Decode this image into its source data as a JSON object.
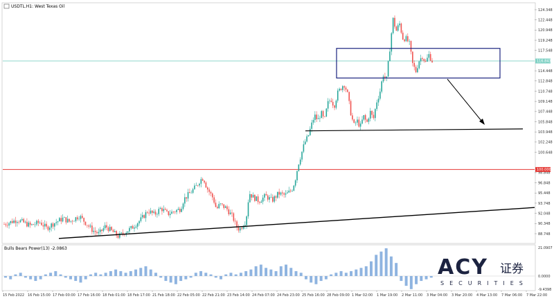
{
  "title": "USDTL.H1: West Texas Oil",
  "indicator_label": "Bulls Bears Power(13) -2.0863",
  "current_price_tag": "116.843",
  "resistance_tag": "100.000",
  "logo": {
    "brand": "ACY",
    "cjk": "证券",
    "sub": "SECURITIES"
  },
  "colors": {
    "bull": "#26a69a",
    "bear": "#ef5350",
    "hist": "#8fb4e0",
    "price_line": "#7fd1c4",
    "resistance": "#e53935",
    "box": "#1a237e",
    "trendline": "#000000",
    "grid": "#e6e6e6"
  },
  "chart_data": {
    "type": "candlestick",
    "symbol": "USDTL",
    "timeframe": "H1",
    "ylim": [
      88.848,
      125.448
    ],
    "y_ticks": [
      "124.348",
      "122.448",
      "120.948",
      "119.248",
      "117.548",
      "116.843",
      "114.448",
      "112.848",
      "110.748",
      "109.148",
      "107.448",
      "105.848",
      "103.948",
      "102.248",
      "100.648",
      "100.000",
      "98.848",
      "96.848",
      "95.448",
      "93.748",
      "92.048",
      "90.348",
      "88.748"
    ],
    "indicator_y_ticks": [
      "21.0907",
      "0.0000",
      "-9.4398"
    ],
    "x_ticks": [
      "15 Feb 2022",
      "16 Feb 15:00",
      "17 Feb 00:00",
      "17 Feb 16:00",
      "18 Feb 01:00",
      "18 Feb 17:00",
      "21 Feb 18:00",
      "22 Feb 05:00",
      "22 Feb 21:00",
      "23 Feb 14:00",
      "24 Feb 07:00",
      "24 Feb 23:00",
      "25 Feb 16:00",
      "28 Feb 09:00",
      "1 Mar 02:00",
      "1 Mar 19:00",
      "2 Mar 11:00",
      "3 Mar 04:00",
      "3 Mar 20:00",
      "4 Mar 13:00",
      "7 Mar 06:00",
      "7 Mar 22:00"
    ],
    "current_price": 116.843,
    "resistance_level": 100.0,
    "annotations": [
      {
        "kind": "rectangle",
        "price_top": 118.8,
        "price_bottom": 114.2
      },
      {
        "kind": "arrow",
        "direction": "down-right"
      },
      {
        "kind": "support_line",
        "price_start": 106.0,
        "price_end": 106.3
      },
      {
        "kind": "trendline",
        "price_start": 89.3,
        "price_end": 94.1
      }
    ],
    "price_path": [
      [
        0,
        91.5
      ],
      [
        4,
        92.2
      ],
      [
        8,
        91.3
      ],
      [
        11,
        91.8
      ],
      [
        13,
        90.9
      ],
      [
        15,
        91.6
      ],
      [
        18,
        92.4
      ],
      [
        20,
        91.9
      ],
      [
        23,
        92.8
      ],
      [
        25,
        91.7
      ],
      [
        27,
        90.6
      ],
      [
        29,
        90.0
      ],
      [
        31,
        91.2
      ],
      [
        33,
        90.4
      ],
      [
        35,
        89.6
      ],
      [
        37,
        90.3
      ],
      [
        39,
        90.9
      ],
      [
        40,
        91.4
      ],
      [
        42,
        92.3
      ],
      [
        44,
        93.6
      ],
      [
        46,
        93.0
      ],
      [
        48,
        94.0
      ],
      [
        50,
        93.1
      ],
      [
        52,
        93.5
      ],
      [
        54,
        93.9
      ],
      [
        55,
        95.4
      ],
      [
        57,
        96.4
      ],
      [
        59,
        97.5
      ],
      [
        60,
        98.4
      ],
      [
        61,
        98.7
      ],
      [
        62,
        97.2
      ],
      [
        64,
        95.5
      ],
      [
        65,
        93.8
      ],
      [
        66,
        94.6
      ],
      [
        68,
        94.0
      ],
      [
        70,
        92.6
      ],
      [
        71,
        91.2
      ],
      [
        72,
        90.7
      ],
      [
        74,
        92.0
      ],
      [
        75,
        96.4
      ],
      [
        76,
        95.8
      ],
      [
        78,
        95.1
      ],
      [
        80,
        95.9
      ],
      [
        82,
        95.2
      ],
      [
        84,
        96.3
      ],
      [
        86,
        96.0
      ],
      [
        88,
        96.8
      ],
      [
        89,
        98.2
      ],
      [
        90,
        100.8
      ],
      [
        92,
        104.2
      ],
      [
        93,
        105.1
      ],
      [
        94,
        106.8
      ],
      [
        95,
        108.4
      ],
      [
        96,
        107.6
      ],
      [
        97,
        108.8
      ],
      [
        98,
        107.5
      ],
      [
        99,
        110.2
      ],
      [
        100,
        111.0
      ],
      [
        101,
        109.8
      ],
      [
        102,
        111.8
      ],
      [
        103,
        112.6
      ],
      [
        104,
        113.3
      ],
      [
        105,
        112.0
      ],
      [
        106,
        109.0
      ],
      [
        107,
        106.8
      ],
      [
        108,
        107.6
      ],
      [
        109,
        106.6
      ],
      [
        110,
        108.3
      ],
      [
        111,
        107.2
      ],
      [
        112,
        109.0
      ],
      [
        113,
        107.8
      ],
      [
        114,
        110.5
      ],
      [
        115,
        112.0
      ],
      [
        116,
        114.8
      ],
      [
        117,
        113.8
      ],
      [
        118,
        118.5
      ],
      [
        119,
        123.4
      ],
      [
        120,
        121.5
      ],
      [
        121,
        122.7
      ],
      [
        122,
        120.4
      ],
      [
        123,
        120.3
      ],
      [
        124,
        119.6
      ],
      [
        125,
        116.4
      ],
      [
        126,
        115.2
      ],
      [
        127,
        116.9
      ],
      [
        128,
        117.6
      ],
      [
        129,
        116.6
      ],
      [
        130,
        117.8
      ],
      [
        131,
        116.843
      ]
    ],
    "bulls_bears_power": [
      -1,
      -2,
      1,
      2,
      -1,
      -2,
      -3,
      -2,
      1,
      2,
      3,
      1,
      -1,
      -2,
      -3,
      -4,
      -2,
      1,
      2,
      1,
      2,
      3,
      4,
      3,
      2,
      3,
      4,
      5,
      6,
      4,
      2,
      -1,
      -3,
      -4,
      -5,
      -3,
      -2,
      -1,
      2,
      3,
      2,
      1,
      -1,
      -2,
      1,
      2,
      1,
      2,
      3,
      4,
      6,
      7,
      5,
      4,
      3,
      6,
      7,
      5,
      3,
      2,
      -2,
      -4,
      -5,
      -3,
      -2,
      1,
      2,
      3,
      2,
      3,
      4,
      5,
      6,
      9,
      13,
      15,
      17,
      12,
      8,
      -3,
      -6,
      -8,
      -5,
      -3,
      -2,
      -1
    ]
  }
}
